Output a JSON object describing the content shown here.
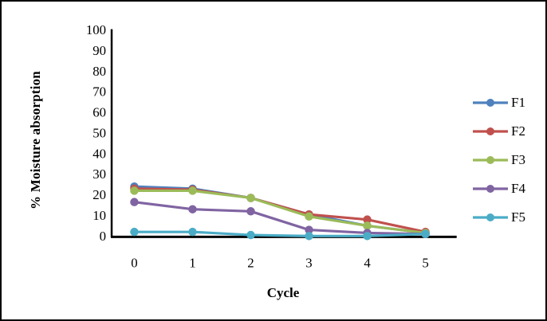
{
  "figure": {
    "y_axis_title": "% Moisture absorption",
    "x_axis_title": "Cycle"
  },
  "chart_data": {
    "type": "line",
    "title": "",
    "xlabel": "Cycle",
    "ylabel": "% Moisture absorption",
    "categories": [
      "0",
      "1",
      "2",
      "3",
      "4",
      "5"
    ],
    "series": [
      {
        "name": "F1",
        "color": "#4F81BD",
        "values": [
          24,
          23,
          18.5,
          10.5,
          5,
          1.5
        ]
      },
      {
        "name": "F2",
        "color": "#C0504D",
        "values": [
          23,
          22.5,
          18.5,
          10.5,
          8,
          2
        ]
      },
      {
        "name": "F3",
        "color": "#9BBB59",
        "values": [
          22,
          22,
          18.5,
          9.5,
          5,
          1.5
        ]
      },
      {
        "name": "F4",
        "color": "#8064A2",
        "values": [
          16.5,
          13,
          12,
          3,
          1.5,
          1
        ]
      },
      {
        "name": "F5",
        "color": "#4BACC6",
        "values": [
          2,
          2,
          0.5,
          0,
          0,
          1
        ]
      }
    ],
    "ylim": [
      0,
      100
    ],
    "ytick_step": 10,
    "grid": false,
    "legend_position": "right",
    "axis_color": "#000000",
    "tick_label_color": "#000000"
  }
}
